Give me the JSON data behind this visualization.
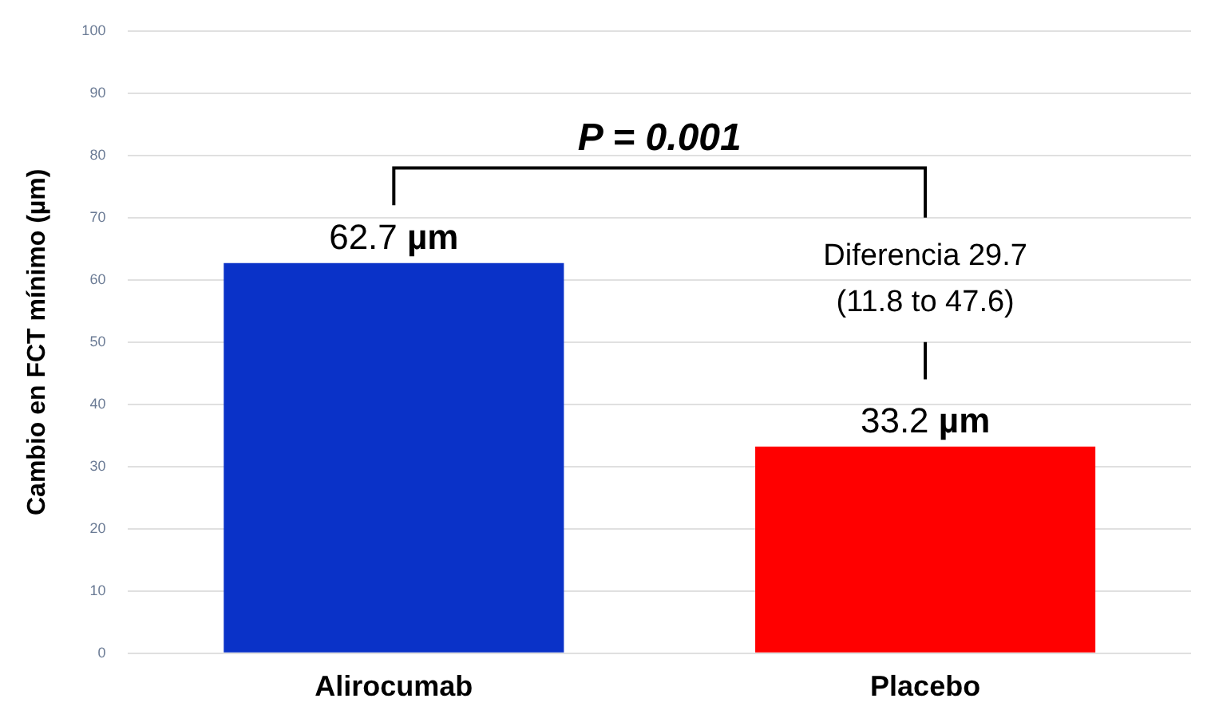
{
  "chart_data": {
    "type": "bar",
    "ylabel": "Cambio en FCT mínimo (µm)",
    "categories": [
      "Alirocumab",
      "Placebo"
    ],
    "values": [
      62.7,
      33.2
    ],
    "colors": [
      "#0a32c8",
      "#ff0000"
    ],
    "value_labels": [
      "62.7 µm",
      "33.2 µm"
    ],
    "ylim": [
      0,
      100
    ],
    "yticks": [
      0,
      10,
      20,
      30,
      40,
      50,
      60,
      70,
      80,
      90,
      100
    ],
    "grid": "y",
    "annotations": [
      "P = 0.001",
      "Diferencia 29.7\n(11.8 to 47.6)"
    ]
  }
}
